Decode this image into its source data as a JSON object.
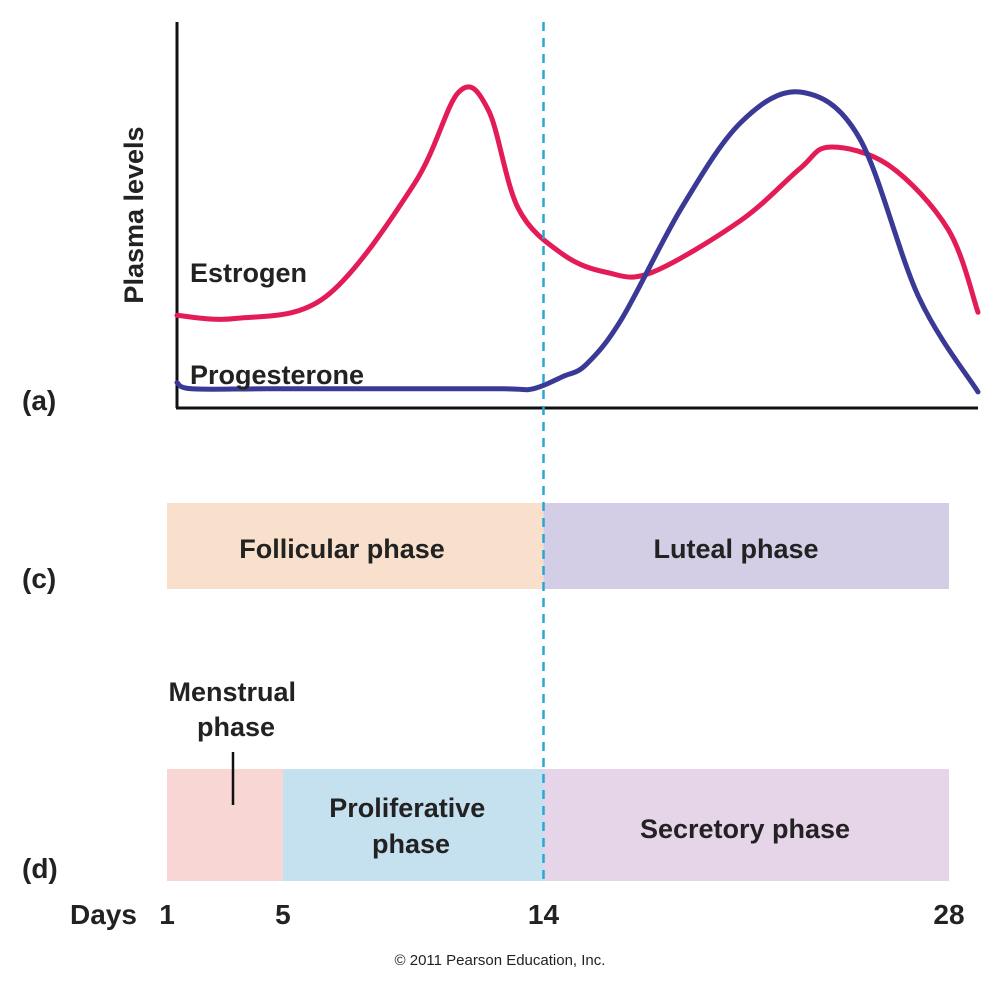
{
  "panels": {
    "a": "(a)",
    "c": "(c)",
    "d": "(d)"
  },
  "chart_data": {
    "type": "line",
    "title": "",
    "xlabel": "Days",
    "ylabel": "Plasma levels",
    "xlim": [
      1,
      28
    ],
    "ylim": [
      0,
      1
    ],
    "xticks": [
      1,
      5,
      14,
      28
    ],
    "xtick_labels": [
      "1",
      "5",
      "14",
      "28"
    ],
    "marker_day": 14,
    "series": [
      {
        "name": "Estrogen",
        "color": "#e31b56",
        "x": [
          1,
          3,
          6,
          9,
          10.5,
          11.5,
          12.5,
          14,
          15.5,
          17,
          20,
          22,
          23,
          25,
          27,
          28
        ],
        "y": [
          0.27,
          0.26,
          0.33,
          0.7,
          1.0,
          0.94,
          0.62,
          0.47,
          0.41,
          0.41,
          0.58,
          0.75,
          0.82,
          0.76,
          0.55,
          0.28
        ]
      },
      {
        "name": "Progesterone",
        "color": "#3a3a96",
        "x": [
          1,
          1.5,
          4,
          8,
          12,
          13,
          14,
          14.8,
          16,
          18,
          20,
          22,
          24,
          26,
          28
        ],
        "y": [
          0.05,
          0.03,
          0.03,
          0.03,
          0.03,
          0.03,
          0.07,
          0.11,
          0.26,
          0.62,
          0.9,
          1.0,
          0.85,
          0.33,
          0.02
        ]
      }
    ]
  },
  "ovarian_phases": [
    {
      "label": "Follicular phase",
      "start": 1,
      "end": 14,
      "color": "#f8e0cc"
    },
    {
      "label": "Luteal phase",
      "start": 14,
      "end": 28,
      "color": "#d3cee6"
    }
  ],
  "uterine_phases": [
    {
      "label": "",
      "start": 1,
      "end": 5,
      "color": "#f7d6d3"
    },
    {
      "label": "Proliferative phase",
      "start": 5,
      "end": 14,
      "color": "#c5e1ef"
    },
    {
      "label": "Secretory phase",
      "start": 14,
      "end": 28,
      "color": "#e6d4e8"
    }
  ],
  "menstrual_label": "Menstrual phase",
  "marker_color": "#2aa6d6",
  "copyright": "© 2011 Pearson Education, Inc."
}
